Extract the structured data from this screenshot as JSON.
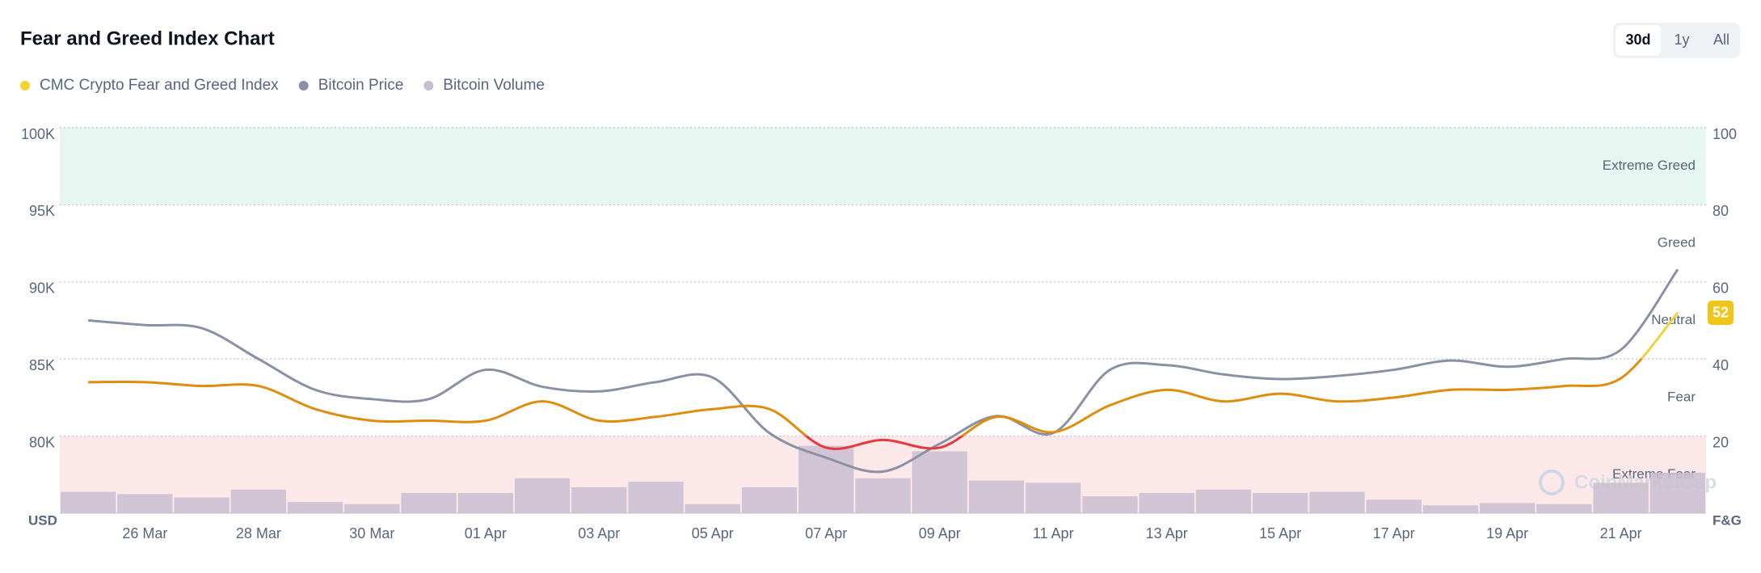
{
  "chart_data": {
    "type": "line",
    "title": "Fear and Greed Index Chart",
    "range_buttons": [
      "30d",
      "1y",
      "All"
    ],
    "selected_button": 0,
    "categories": [
      null,
      "26 Mar",
      null,
      "28 Mar",
      null,
      "30 Mar",
      null,
      "01 Apr",
      null,
      "03 Apr",
      null,
      "05 Apr",
      null,
      "07 Apr",
      null,
      "09 Apr",
      null,
      "11 Apr",
      null,
      "13 Apr",
      null,
      "15 Apr",
      null,
      "17 Apr",
      null,
      "19 Apr",
      null,
      "21 Apr",
      null
    ],
    "series": [
      {
        "name": "CMC Crypto Fear and Greed Index",
        "color": "#f3d42f",
        "axis": "y2",
        "values": [
          34,
          34,
          33,
          33,
          27,
          24,
          24,
          24,
          29,
          24,
          25,
          27,
          27,
          17,
          19,
          17,
          25,
          21,
          28,
          32,
          29,
          31,
          29,
          30,
          32,
          32,
          33,
          35,
          52
        ]
      },
      {
        "name": "Bitcoin Price",
        "color": "#8a91a5",
        "values": [
          87500,
          87200,
          87000,
          85000,
          83000,
          82400,
          82400,
          84300,
          83200,
          82900,
          83500,
          83800,
          80200,
          78600,
          77700,
          79500,
          81300,
          80200,
          84300,
          84600,
          84000,
          83700,
          83900,
          84300,
          84900,
          84500,
          85000,
          85600,
          90800
        ]
      },
      {
        "name": "Bitcoin Volume",
        "color": "#c9bdd0",
        "kind": "bar",
        "values": [
          19,
          17,
          14,
          21,
          10,
          8,
          18,
          18,
          31,
          23,
          28,
          8,
          23,
          60,
          31,
          55,
          29,
          27,
          15,
          18,
          21,
          18,
          19,
          12,
          7,
          9,
          8,
          27,
          36
        ]
      }
    ],
    "ylim": [
      75000,
      100000
    ],
    "yticks": [
      {
        "value": 80000,
        "label": "80K"
      },
      {
        "value": 85000,
        "label": "85K"
      },
      {
        "value": 90000,
        "label": "90K"
      },
      {
        "value": 95000,
        "label": "95K"
      },
      {
        "value": 100000,
        "label": "100K"
      }
    ],
    "y2lim": [
      0,
      100
    ],
    "y2ticks": [
      20,
      40,
      60,
      80,
      100
    ],
    "ylabel": "USD",
    "y2label": "F&G",
    "zones": [
      {
        "label": "Extreme Fear",
        "from": 0,
        "to": 20,
        "color": "#fce8e8",
        "line_color": "#e5393f"
      },
      {
        "label": "Fear",
        "from": 20,
        "to": 40,
        "line_color": "#e08c0c"
      },
      {
        "label": "Neutral",
        "from": 40,
        "to": 60,
        "line_color": "#f0d23a"
      },
      {
        "label": "Greed",
        "from": 60,
        "to": 80,
        "line_color": "#9bcf3a"
      },
      {
        "label": "Extreme Greed",
        "from": 80,
        "to": 100,
        "color": "#e6f7f1",
        "line_color": "#16c784"
      }
    ],
    "grid": true,
    "watermark": "CoinMarketCap"
  }
}
